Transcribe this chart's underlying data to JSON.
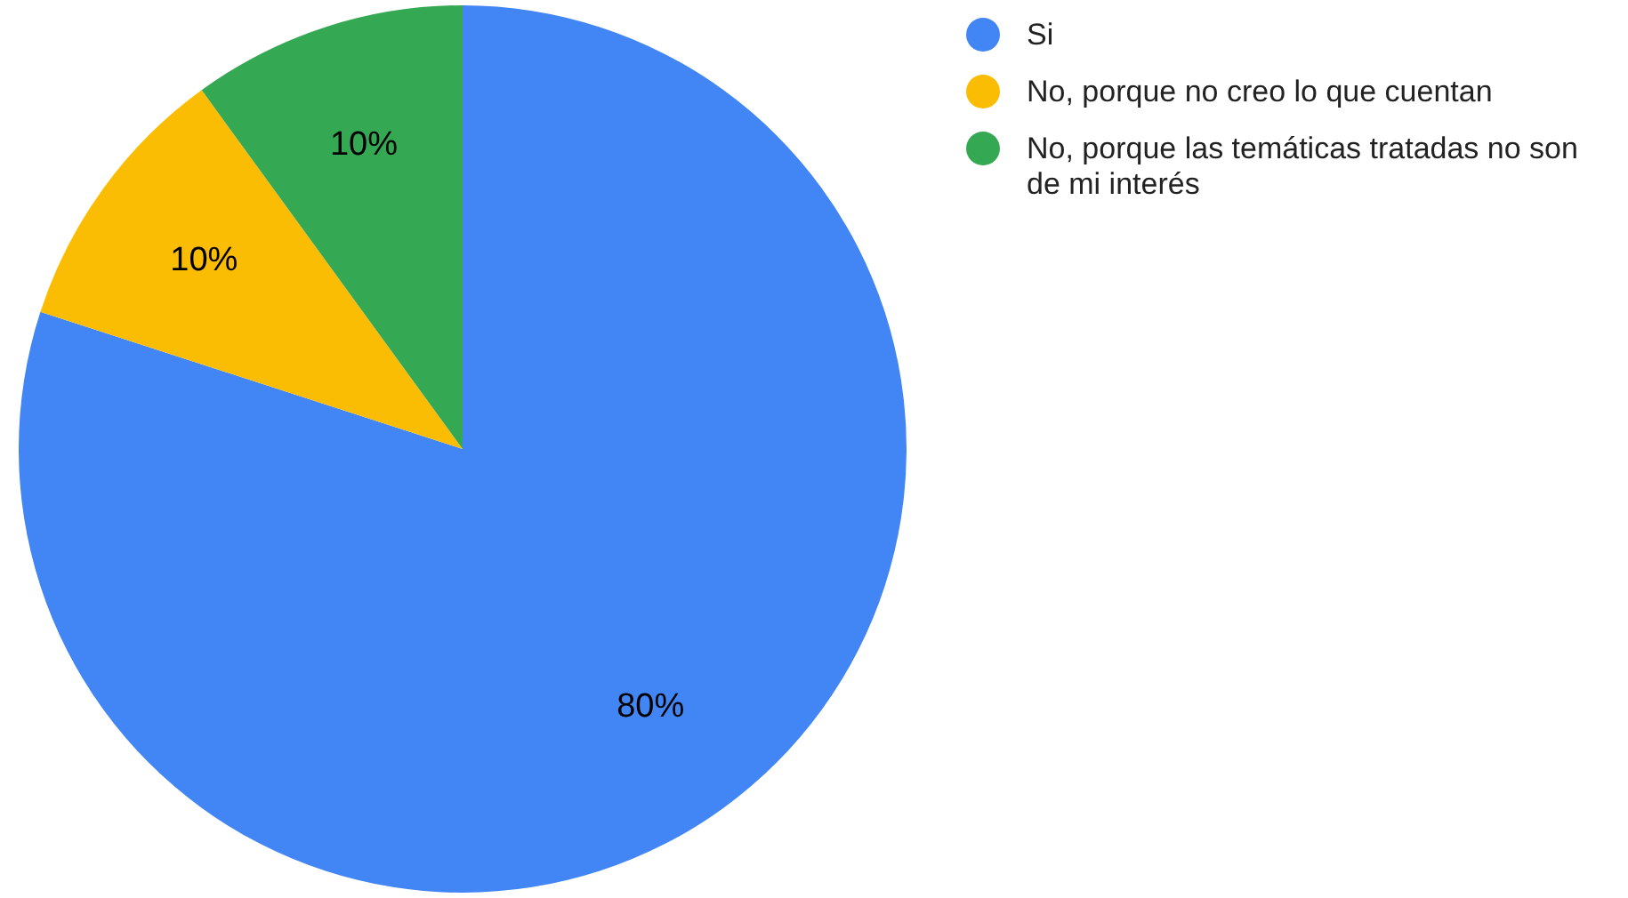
{
  "chart_data": {
    "type": "pie",
    "categories": [
      "Si",
      "No, porque no creo lo que cuentan",
      "No, porque las temáticas tratadas no son de mi interés"
    ],
    "values": [
      80,
      10,
      10
    ],
    "colors": [
      "#4285f4",
      "#fbbc04",
      "#34a853"
    ],
    "value_labels": [
      "80%",
      "10%",
      "10%"
    ],
    "legend": "top right"
  }
}
